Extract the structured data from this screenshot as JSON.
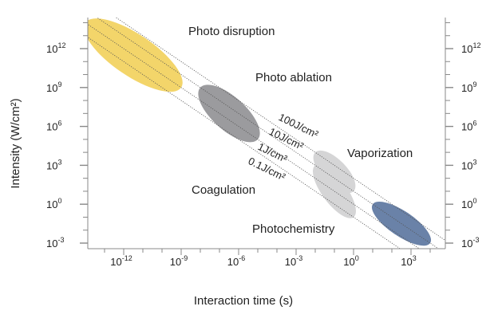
{
  "chart_data": {
    "type": "scatter",
    "xlabel": "Interaction time (s)",
    "ylabel": "Intensity (W/cm²)",
    "x_scale": "log",
    "y_scale": "log",
    "xlim": [
      1e-14,
      100000.0
    ],
    "ylim": [
      0.001,
      1000000000000000.0
    ],
    "grid": false,
    "x_ticks": [
      {
        "base": "10",
        "exp": "-12",
        "value": 1e-12
      },
      {
        "base": "10",
        "exp": "-9",
        "value": 1e-09
      },
      {
        "base": "10",
        "exp": "-6",
        "value": 1e-06
      },
      {
        "base": "10",
        "exp": "-3",
        "value": 0.001
      },
      {
        "base": "10",
        "exp": "0",
        "value": 1
      },
      {
        "base": "10",
        "exp": "3",
        "value": 1000.0
      }
    ],
    "y_ticks": [
      {
        "base": "10",
        "exp": "12",
        "value": 1000000000000.0
      },
      {
        "base": "10",
        "exp": "9",
        "value": 1000000000.0
      },
      {
        "base": "10",
        "exp": "6",
        "value": 1000000.0
      },
      {
        "base": "10",
        "exp": "3",
        "value": 1000.0
      },
      {
        "base": "10",
        "exp": "0",
        "value": 1
      },
      {
        "base": "10",
        "exp": "-3",
        "value": 0.001
      }
    ],
    "fluence_lines": [
      {
        "label": "100J/cm²",
        "fluence": 100
      },
      {
        "label": "10J/cm²",
        "fluence": 10
      },
      {
        "label": "1J/cm²",
        "fluence": 1
      },
      {
        "label": "0.1J/cm²",
        "fluence": 0.1
      }
    ],
    "regions": [
      {
        "label": "Photo disruption",
        "x_range": [
          1e-14,
          1e-09
        ],
        "y_range": [
          1000000000.0,
          100000000000000.0
        ],
        "color": "#f3d56a"
      },
      {
        "label": "Photo ablation",
        "x_range": [
          1e-08,
          1e-05
        ],
        "y_range": [
          100000.0,
          1000000000.0
        ],
        "color": "#9b9b9e"
      },
      {
        "label": "Vaporization",
        "x_range": [
          0.01,
          1.0
        ],
        "y_range": [
          10.0,
          10000.0
        ],
        "color": "#d5d5d6"
      },
      {
        "label": "Coagulation",
        "x_range": [
          0.01,
          1.0
        ],
        "y_range": [
          0.1,
          1000.0
        ],
        "color": "#d5d5d6"
      },
      {
        "label": "Photochemistry",
        "x_range": [
          10.0,
          10000.0
        ],
        "y_range": [
          0.001,
          1.0
        ],
        "color": "#6a82a8"
      }
    ]
  }
}
